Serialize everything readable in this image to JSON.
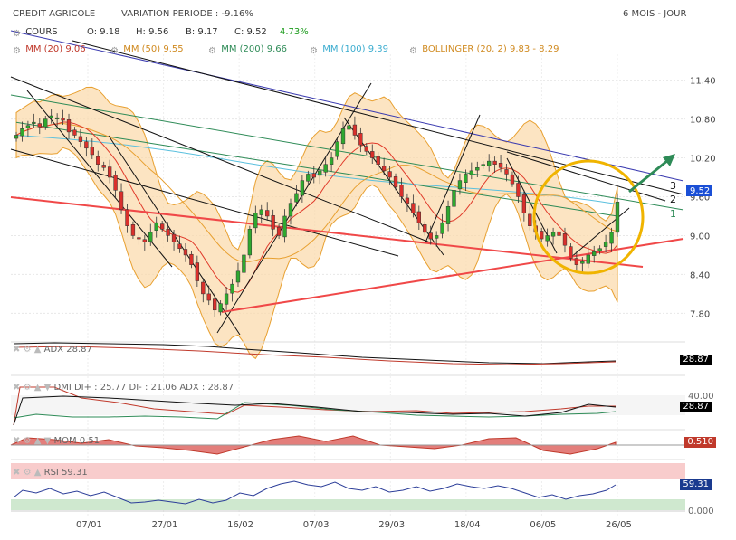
{
  "header": {
    "instrument": "CREDIT AGRICOLE",
    "variation": "VARIATION PERIODE : -9.16%",
    "period": "6 MOIS - JOUR"
  },
  "legend": {
    "cours": {
      "label": "COURS",
      "o": "O: 9.18",
      "h": "H: 9.56",
      "b": "B: 9.17",
      "c": "C: 9.52",
      "pct": "4.73%"
    },
    "mm20": {
      "label": "MM (20)",
      "value": "9.06",
      "color": "#e03a2a"
    },
    "mm50": {
      "label": "MM (50)",
      "value": "9.55",
      "color": "#e8a030"
    },
    "mm200": {
      "label": "MM (200)",
      "value": "9.66",
      "color": "#2e8b57"
    },
    "mm100": {
      "label": "MM (100)",
      "value": "9.39",
      "color": "#5bc0de"
    },
    "bollinger": {
      "label": "BOLLINGER (20, 2)",
      "value": "9.83 - 8.29",
      "color": "#e8a030"
    }
  },
  "price_axis": [
    "11.40",
    "10.80",
    "10.20",
    "9.60",
    "9.00",
    "8.40",
    "7.80"
  ],
  "last_price": "9.52",
  "line_labels": [
    "3",
    "2",
    "1"
  ],
  "x_axis_labels": [
    "07/01",
    "27/01",
    "16/02",
    "07/03",
    "29/03",
    "18/04",
    "06/05",
    "26/05"
  ],
  "panels": {
    "adx": {
      "label": "ADX",
      "value": "28.87",
      "badge": "28.87"
    },
    "dmi": {
      "label": "DMI DI+ : 25.77 DI- : 21.06 ADX : 28.87",
      "axis_top": "40.00",
      "badge": "28.87"
    },
    "mom": {
      "label": "MOM",
      "value": "0.51",
      "badge": "0.510"
    },
    "rsi": {
      "label": "RSI",
      "value": "59.31",
      "axis_bottom": "0.000",
      "badge": "59.31"
    }
  },
  "chart_data": {
    "type": "candlestick",
    "x_ticks": [
      "07/01",
      "27/01",
      "16/02",
      "07/03",
      "29/03",
      "18/04",
      "06/05",
      "26/05"
    ],
    "ylim": [
      7.4,
      11.8
    ],
    "closes": [
      10.55,
      10.65,
      10.7,
      10.75,
      10.68,
      10.8,
      10.85,
      10.82,
      10.78,
      10.6,
      10.55,
      10.45,
      10.35,
      10.25,
      10.1,
      10.05,
      9.9,
      9.7,
      9.4,
      9.15,
      9.0,
      8.95,
      8.9,
      9.05,
      9.2,
      9.1,
      9.0,
      8.9,
      8.8,
      8.7,
      8.55,
      8.3,
      8.1,
      8.0,
      7.85,
      7.95,
      8.1,
      8.25,
      8.45,
      8.7,
      9.1,
      9.35,
      9.4,
      9.3,
      9.1,
      9.0,
      9.3,
      9.5,
      9.65,
      9.85,
      9.95,
      9.9,
      10.0,
      10.1,
      10.2,
      10.45,
      10.65,
      10.7,
      10.55,
      10.4,
      10.3,
      10.2,
      10.1,
      10.0,
      9.9,
      9.75,
      9.6,
      9.5,
      9.35,
      9.2,
      9.05,
      8.95,
      9.0,
      9.2,
      9.45,
      9.7,
      9.85,
      9.95,
      10.0,
      10.05,
      10.1,
      10.15,
      10.1,
      10.05,
      9.95,
      9.8,
      9.6,
      9.35,
      9.15,
      9.05,
      8.95,
      9.0,
      9.05,
      9.0,
      8.85,
      8.65,
      8.55,
      8.6,
      8.7,
      8.75,
      8.8,
      8.9,
      9.05,
      9.52
    ],
    "series": [
      {
        "name": "MM (20)",
        "color": "#e03a2a"
      },
      {
        "name": "MM (50)",
        "color": "#e8a030"
      },
      {
        "name": "MM (200)",
        "color": "#2e8b57"
      },
      {
        "name": "MM (100)",
        "color": "#5bc0de"
      },
      {
        "name": "BOLLINGER (20, 2)",
        "color": "#e8a030"
      }
    ]
  }
}
